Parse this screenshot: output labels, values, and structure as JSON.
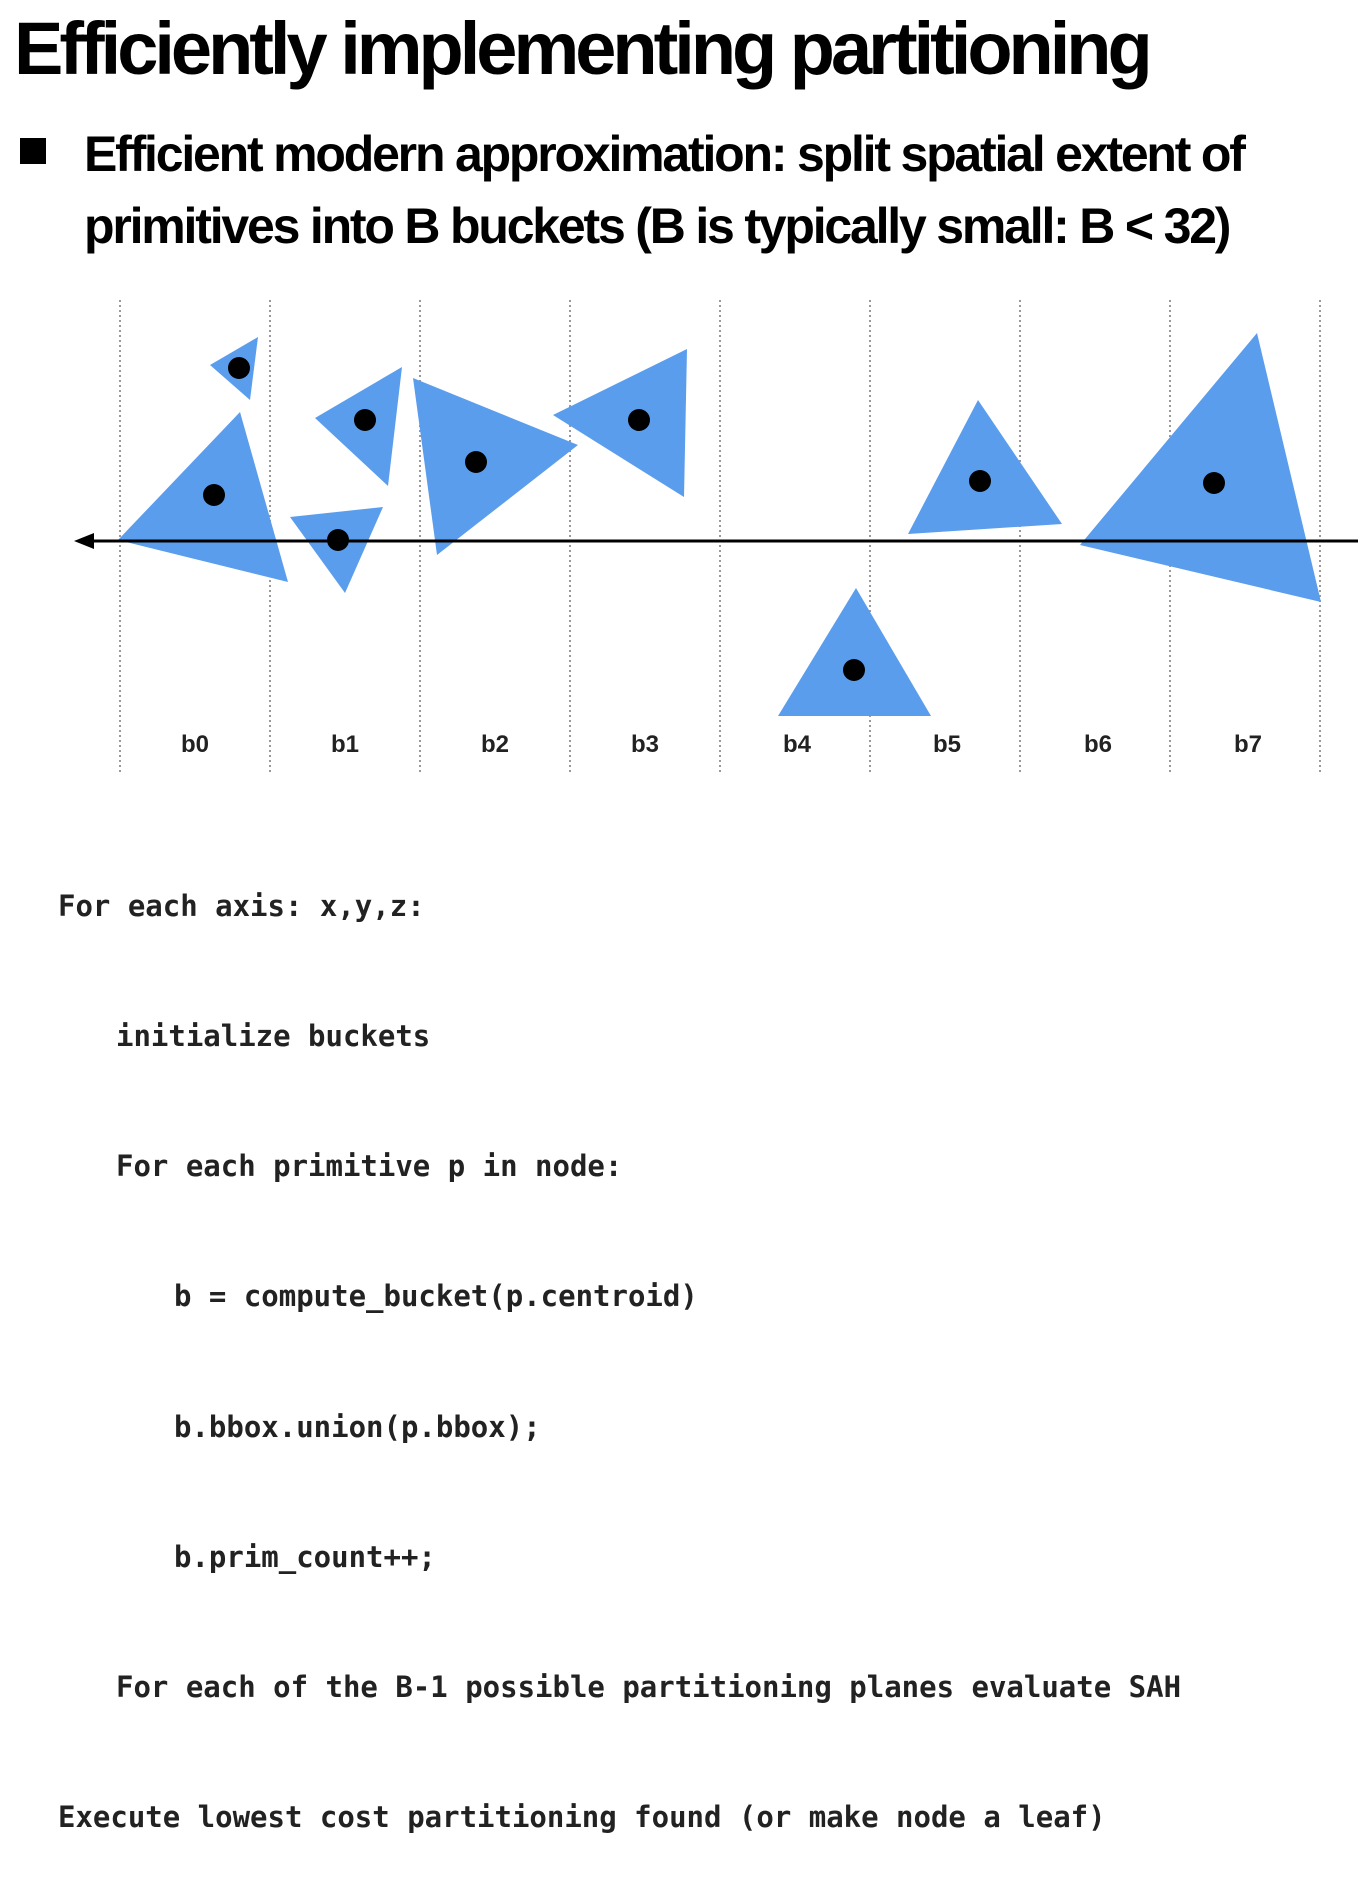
{
  "slide": {
    "title": "Efficiently implementing partitioning",
    "bullet": "Efficient modern approximation: split spatial extent of primitives into B buckets (B is typically small: B < 32)"
  },
  "diagram": {
    "bucket_labels": [
      "b0",
      "b1",
      "b2",
      "b3",
      "b4",
      "b5",
      "b6",
      "b7"
    ],
    "colors": {
      "triangle_fill": "#5b9ded",
      "centroid": "#000000",
      "axis": "#000000",
      "bucket_divider": "#999999"
    }
  },
  "code": [
    {
      "text": "For each axis: x,y,z:",
      "indent": 0
    },
    {
      "text": "initialize buckets",
      "indent": 1
    },
    {
      "text": "For each primitive p in node:",
      "indent": 1
    },
    {
      "text": "b = compute_bucket(p.centroid)",
      "indent": 2
    },
    {
      "text": "b.bbox.union(p.bbox);",
      "indent": 2
    },
    {
      "text": "b.prim_count++;",
      "indent": 2
    },
    {
      "text": "For each of the B-1 possible partitioning planes evaluate SAH",
      "indent": 1
    },
    {
      "text": "Execute lowest cost partitioning found (or make node a leaf)",
      "indent": 0
    }
  ]
}
